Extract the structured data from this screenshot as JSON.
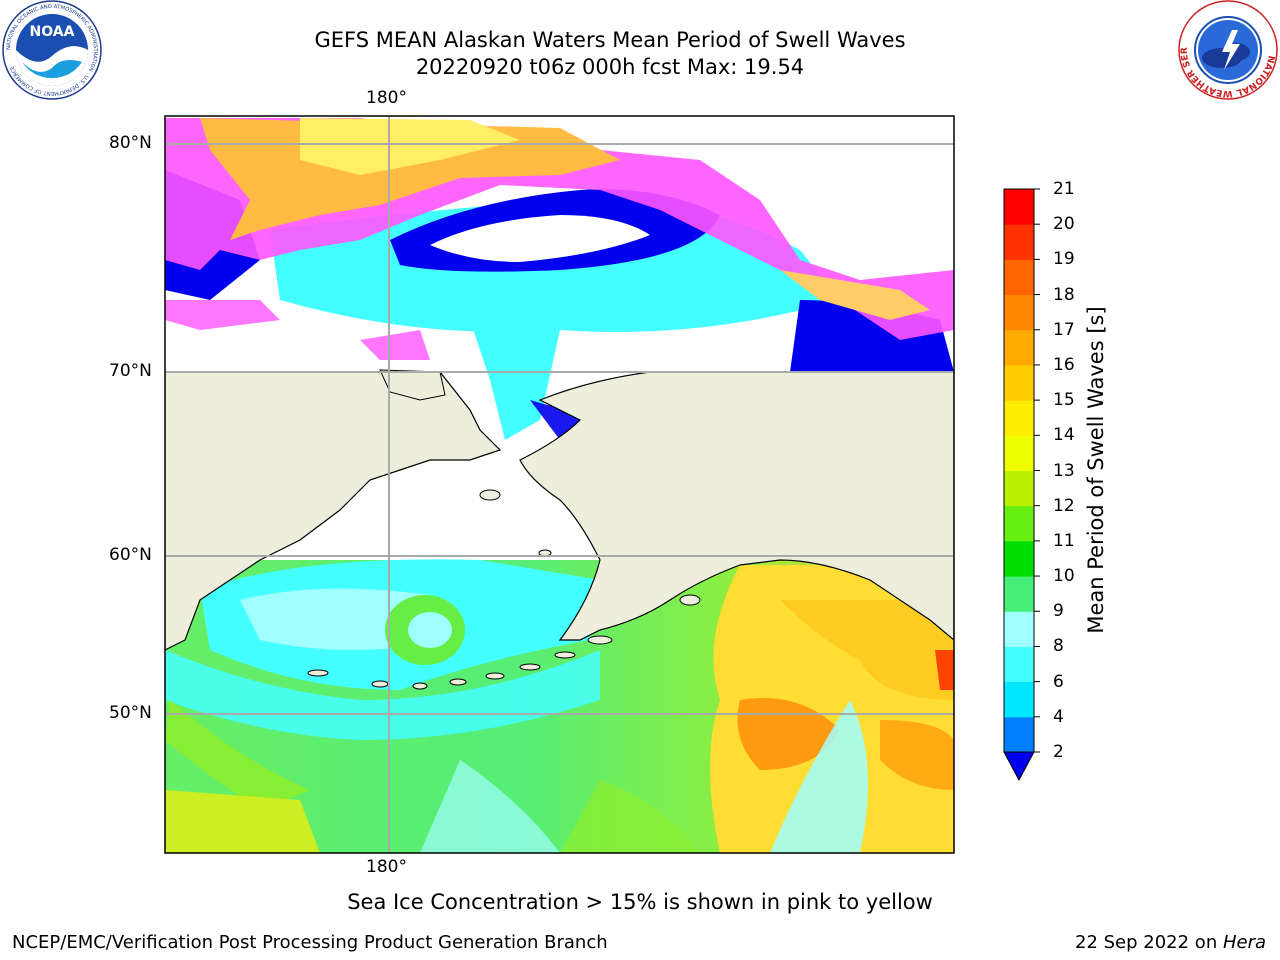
{
  "header": {
    "title_line1": "GEFS MEAN Alaskan Waters Mean Period of Swell Waves",
    "title_line2": "20220920 t06z 000h fcst   Max: 19.54"
  },
  "logos": {
    "left": {
      "name": "noaa-logo",
      "text": "NOAA",
      "ring_text": "NATIONAL OCEANIC AND ATMOSPHERIC ADMINISTRATION · U.S. DEPARTMENT OF COMMERCE"
    },
    "right": {
      "name": "nws-logo",
      "ring_text": "NATIONAL WEATHER SERVICE"
    }
  },
  "map": {
    "lon_top_label": "180°",
    "lon_bottom_label": "180°",
    "lat_labels": [
      "80°N",
      "70°N",
      "60°N",
      "50°N"
    ],
    "land_color": "#eeeedd",
    "ice_color_range": [
      "#ff55ff",
      "#ffee66"
    ],
    "no_data_color": "#ffffff"
  },
  "colorbar": {
    "label": "Mean Period of Swell Waves [s]",
    "ticks": [
      "21",
      "20",
      "19",
      "18",
      "17",
      "16",
      "15",
      "14",
      "13",
      "12",
      "11",
      "10",
      "9",
      "8",
      "6",
      "4",
      "2"
    ],
    "levels": [
      2,
      4,
      6,
      8,
      9,
      10,
      11,
      12,
      13,
      14,
      15,
      16,
      17,
      18,
      19,
      20,
      21
    ],
    "colors": [
      "#0000ee",
      "#0080ff",
      "#00e8ff",
      "#44ffff",
      "#a0ffff",
      "#44ee77",
      "#00dd00",
      "#66ee11",
      "#bbf000",
      "#eeff00",
      "#ffee00",
      "#ffcc00",
      "#ffaa00",
      "#ff8800",
      "#ff6600",
      "#ff3300",
      "#ff0000"
    ]
  },
  "notes": {
    "ice": "Sea Ice Concentration > 15% is shown in pink to yellow"
  },
  "footer": {
    "left": "NCEP/EMC/Verification Post Processing Product Generation Branch",
    "right_date": "22 Sep 2022 on ",
    "right_host": "Hera"
  }
}
